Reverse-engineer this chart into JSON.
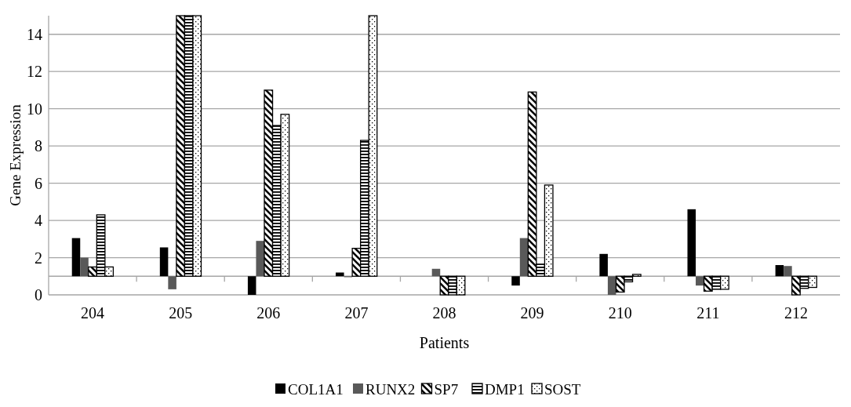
{
  "chart_data": {
    "type": "bar",
    "xlabel": "Patients",
    "ylabel": "Gene Expression",
    "categories": [
      "204",
      "205",
      "206",
      "207",
      "208",
      "209",
      "210",
      "211",
      "212"
    ],
    "series": [
      {
        "name": "COL1A1",
        "color": "#000000",
        "base": [
          1,
          1,
          1,
          1,
          null,
          1,
          1,
          1,
          1
        ],
        "values": [
          2.05,
          1.55,
          -1,
          0.2,
          null,
          -0.5,
          1.2,
          3.6,
          0.6
        ]
      },
      {
        "name": "RUNX2",
        "color": "#595959",
        "base": [
          1,
          1,
          1,
          1,
          1,
          1,
          1,
          1,
          1
        ],
        "values": [
          1,
          -0.7,
          1.9,
          -0.05,
          0.4,
          2.05,
          -1,
          -0.5,
          0.55
        ]
      },
      {
        "name": "SP7",
        "color": "#000000",
        "base": [
          1,
          1,
          1,
          1,
          1,
          1,
          1,
          1,
          1
        ],
        "values": [
          0.5,
          14,
          10,
          1.5,
          -1,
          9.9,
          -0.85,
          -0.8,
          -1
        ]
      },
      {
        "name": "DMP1",
        "color": "#000000",
        "base": [
          1,
          1,
          1,
          1,
          1,
          1,
          1,
          1,
          1
        ],
        "values": [
          3.3,
          14,
          8.1,
          7.3,
          -1,
          0.65,
          -0.3,
          -0.7,
          -0.65
        ]
      },
      {
        "name": "SOST",
        "color": "#000000",
        "base": [
          1,
          1,
          1,
          1,
          1,
          1,
          1,
          1,
          1
        ],
        "values": [
          0.5,
          14,
          8.7,
          14,
          -1,
          4.9,
          0.1,
          -0.7,
          -0.6
        ]
      }
    ],
    "ylim": [
      0,
      15
    ],
    "yticks": [
      0,
      2,
      4,
      6,
      8,
      10,
      12,
      14
    ],
    "grid": "y",
    "legend": "bottom"
  }
}
